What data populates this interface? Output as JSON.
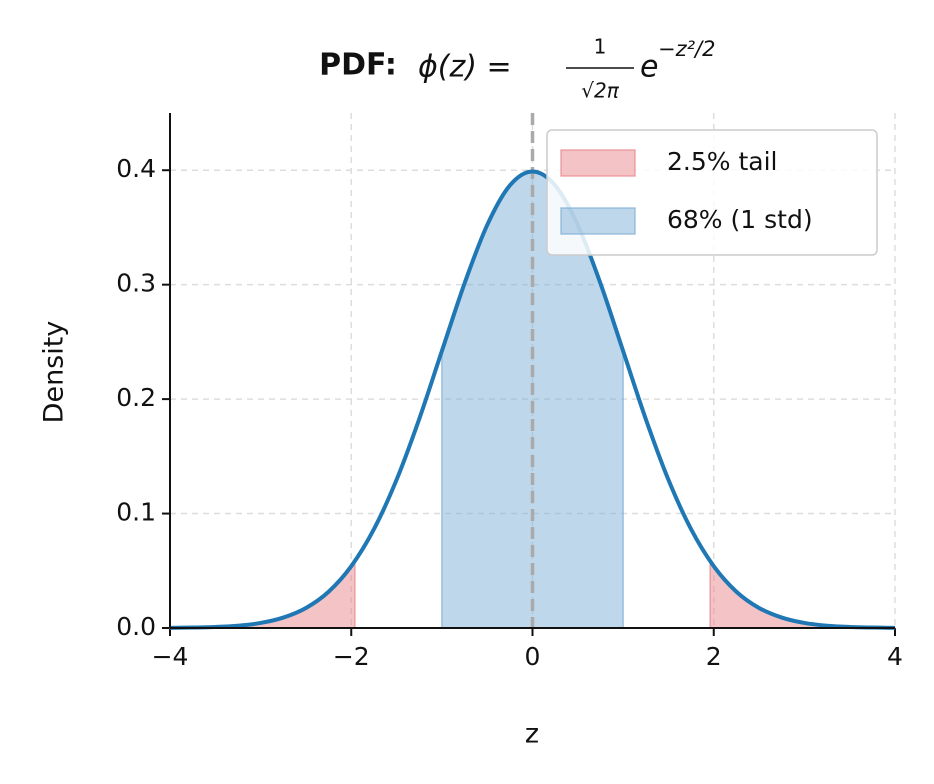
{
  "chart_data": {
    "type": "line",
    "title": {
      "label": "PDF:",
      "lhs": "ϕ(z) =",
      "numerator": "1",
      "denominator": "√2π",
      "base": "e",
      "exponent": "−z²/2"
    },
    "xlabel": "z",
    "ylabel": "Density",
    "xlim": [
      -4,
      4
    ],
    "ylim": [
      0,
      0.45
    ],
    "xticks": [
      {
        "value": -4,
        "label": "−4"
      },
      {
        "value": -2,
        "label": "−2"
      },
      0,
      2,
      4
    ],
    "yticks": [
      {
        "value": 0,
        "label": "0.0"
      },
      0.1,
      0.2,
      0.3,
      0.4
    ],
    "grid": true,
    "legend": "upper right",
    "vline": 0,
    "series": [
      {
        "color": "#1f77b4",
        "x": [
          -4,
          -3.75,
          -3.5,
          -3.25,
          -3,
          -2.75,
          -2.5,
          -2.25,
          -2,
          -1.75,
          -1.5,
          -1.25,
          -1,
          -0.75,
          -0.5,
          -0.25,
          0,
          0.25,
          0.5,
          0.75,
          1,
          1.25,
          1.5,
          1.75,
          2,
          2.25,
          2.5,
          2.75,
          3,
          3.25,
          3.5,
          3.75,
          4
        ],
        "values": [
          0.0001,
          0.0004,
          0.0009,
          0.002,
          0.0044,
          0.0091,
          0.0175,
          0.0317,
          0.054,
          0.0863,
          0.1295,
          0.1826,
          0.242,
          0.3011,
          0.3521,
          0.3867,
          0.3989,
          0.3867,
          0.3521,
          0.3011,
          0.242,
          0.1826,
          0.1295,
          0.0863,
          0.054,
          0.0317,
          0.0175,
          0.0091,
          0.0044,
          0.002,
          0.0009,
          0.0004,
          0.0001
        ]
      }
    ],
    "areas": [
      {
        "name": "2.5% tail",
        "color": "#e8878d",
        "segments": [
          {
            "x": [
              -4,
              -3.75,
              -3.5,
              -3.25,
              -3,
              -2.75,
              -2.5,
              -2.25,
              -2,
              -1.96
            ],
            "values": [
              0.0001,
              0.0004,
              0.0009,
              0.002,
              0.0044,
              0.0091,
              0.0175,
              0.0317,
              0.054,
              0.0584
            ]
          },
          {
            "x": [
              1.96,
              2,
              2.25,
              2.5,
              2.75,
              3,
              3.25,
              3.5,
              3.75,
              4
            ],
            "values": [
              0.0584,
              0.054,
              0.0317,
              0.0175,
              0.0091,
              0.0044,
              0.002,
              0.0009,
              0.0004,
              0.0001
            ]
          }
        ]
      },
      {
        "name": "68% (1 std)",
        "color": "#7fafd6",
        "segments": [
          {
            "x": [
              -1,
              -0.75,
              -0.5,
              -0.25,
              0,
              0.25,
              0.5,
              0.75,
              1
            ],
            "values": [
              0.242,
              0.3011,
              0.3521,
              0.3867,
              0.3989,
              0.3867,
              0.3521,
              0.3011,
              0.242
            ]
          }
        ]
      }
    ]
  }
}
